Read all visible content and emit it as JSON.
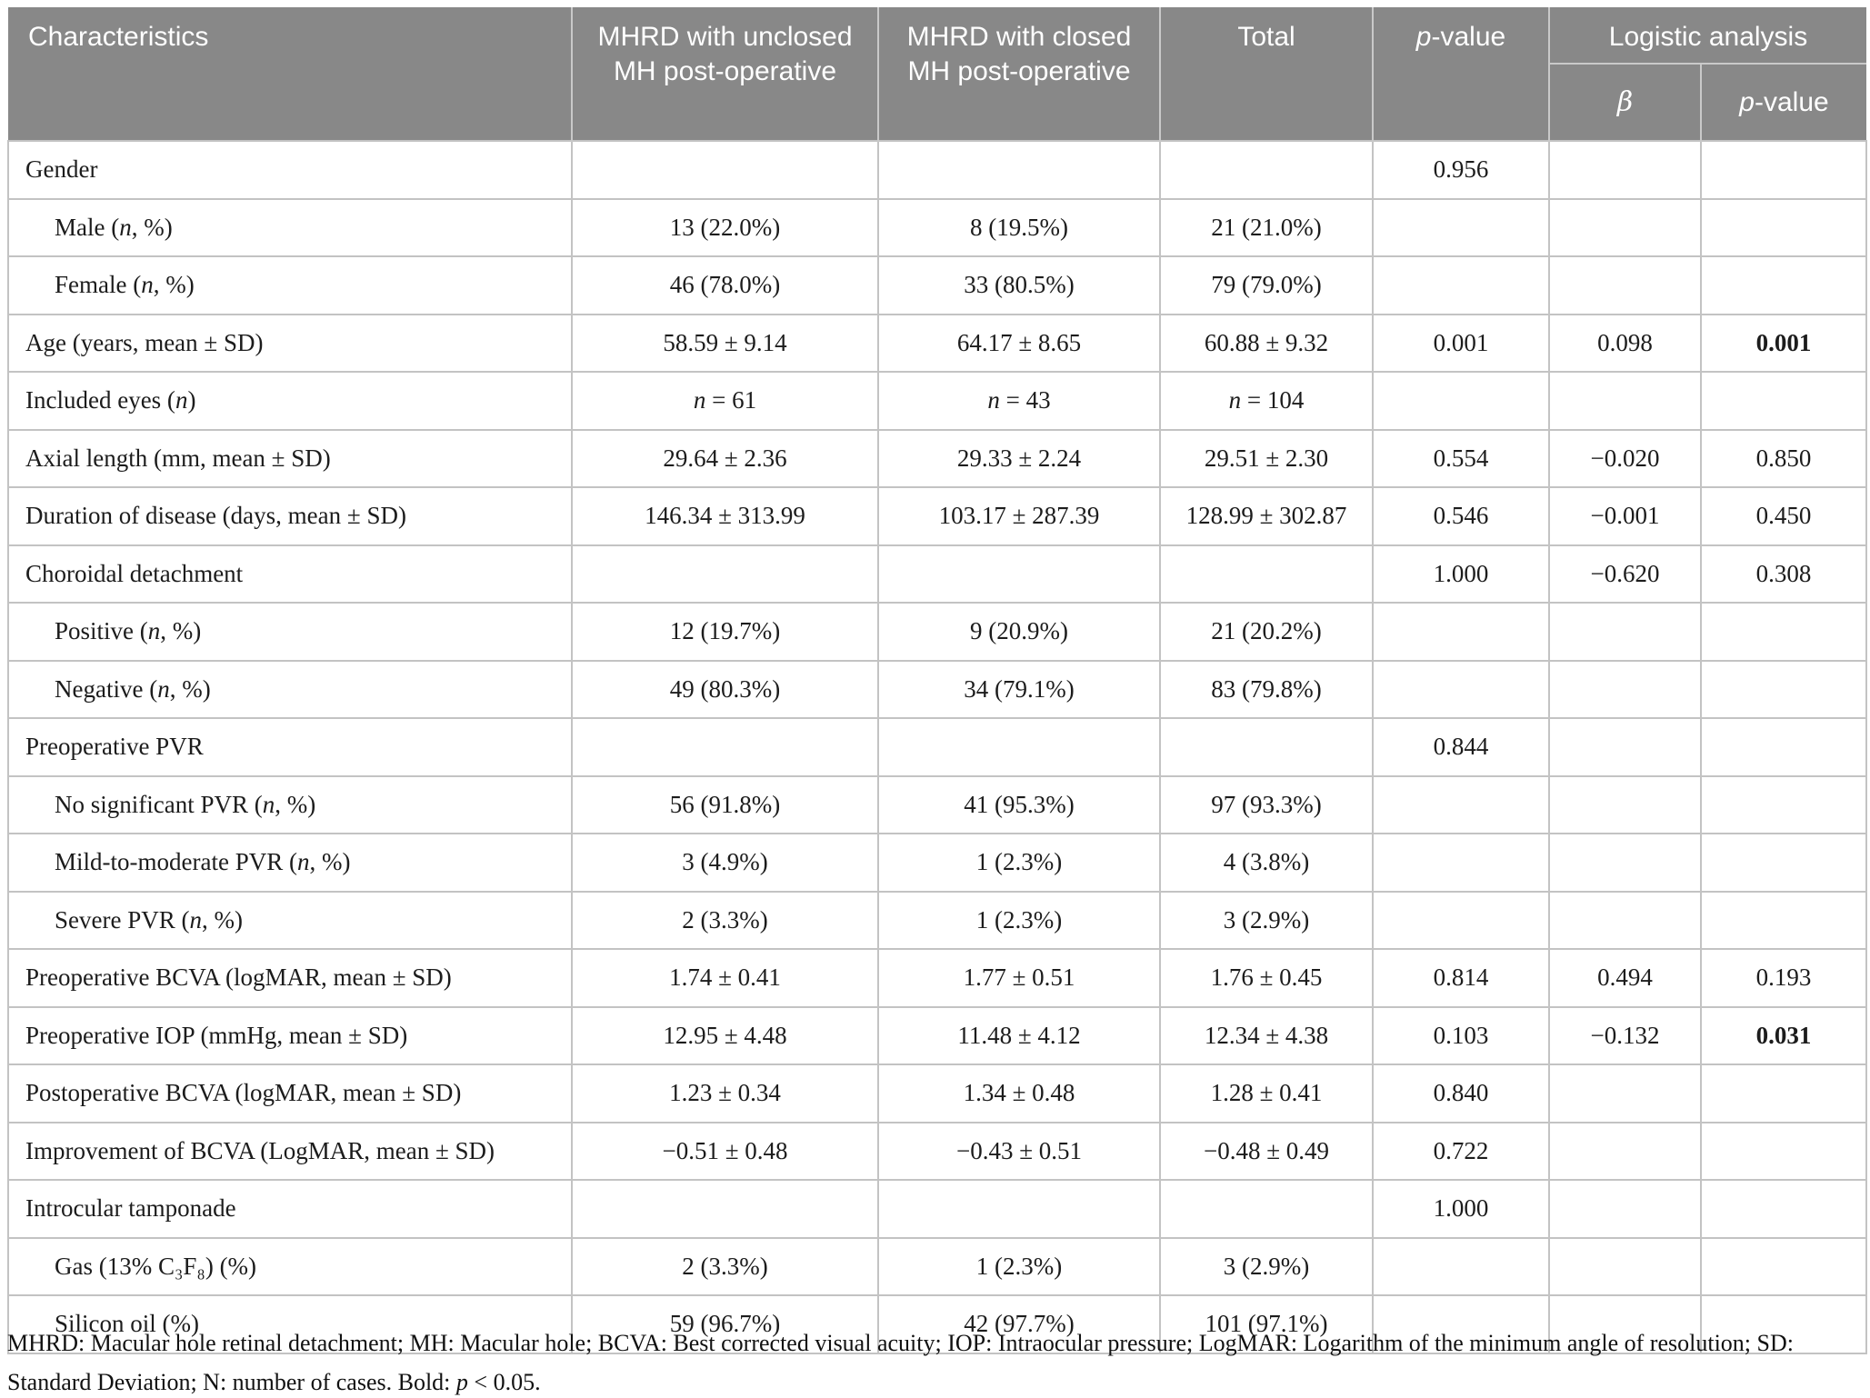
{
  "colors": {
    "header_bg": "#888888",
    "grid_line": "#c3c3c3",
    "header_text": "#ffffff",
    "body_text": "#1c1c1c"
  },
  "header": {
    "characteristics": "Characteristics",
    "group_unclosed": "MHRD with unclosed MH post-operative",
    "group_closed": "MHRD with closed MH post-operative",
    "total": "Total",
    "pvalue": [
      [
        "p",
        1
      ],
      [
        "-value",
        0
      ]
    ],
    "logistic": "Logistic analysis",
    "beta": [
      [
        "β",
        1
      ]
    ],
    "logistic_pvalue": [
      [
        "p",
        1
      ],
      [
        "-value",
        0
      ]
    ]
  },
  "table": {
    "rows": [
      {
        "label": "Gender",
        "cells": [
          "",
          "",
          "",
          "0.956",
          "",
          ""
        ]
      },
      {
        "label": [
          [
            "Male (",
            0
          ],
          [
            "n",
            1
          ],
          [
            ", %)",
            0
          ]
        ],
        "cells": [
          "13 (22.0%)",
          "8 (19.5%)",
          "21 (21.0%)",
          "",
          "",
          ""
        ]
      },
      {
        "label": [
          [
            "Female (",
            0
          ],
          [
            "n",
            1
          ],
          [
            ", %)",
            0
          ]
        ],
        "cells": [
          "46 (78.0%)",
          "33 (80.5%)",
          "79 (79.0%)",
          "",
          "",
          ""
        ]
      },
      {
        "label": "Age (years, mean ± SD)",
        "cells": [
          "58.59 ± 9.14",
          "64.17 ± 8.65",
          "60.88 ± 9.32",
          "0.001",
          "0.098",
          "0.001"
        ]
      },
      {
        "label": [
          [
            "Included eyes (",
            0
          ],
          [
            "n",
            1
          ],
          [
            ")",
            0
          ]
        ],
        "cells": [
          [
            [
              "n",
              1
            ],
            [
              " = 61",
              0
            ]
          ],
          [
            [
              "n",
              1
            ],
            [
              " = 43",
              0
            ]
          ],
          [
            [
              "n",
              1
            ],
            [
              " = 104",
              0
            ]
          ],
          "",
          "",
          ""
        ]
      },
      {
        "label": "Axial length (mm, mean ± SD)",
        "cells": [
          "29.64 ± 2.36",
          "29.33 ± 2.24",
          "29.51 ± 2.30",
          "0.554",
          "−0.020",
          "0.850"
        ]
      },
      {
        "label": "Duration of disease (days, mean ± SD)",
        "cells": [
          "146.34 ± 313.99",
          "103.17 ± 287.39",
          "128.99 ± 302.87",
          "0.546",
          "−0.001",
          "0.450"
        ]
      },
      {
        "label": "Choroidal detachment",
        "cells": [
          "",
          "",
          "",
          "1.000",
          "−0.620",
          "0.308"
        ]
      },
      {
        "label": [
          [
            "Positive (",
            0
          ],
          [
            "n",
            1
          ],
          [
            ", %)",
            0
          ]
        ],
        "cells": [
          "12 (19.7%)",
          "9 (20.9%)",
          "21 (20.2%)",
          "",
          "",
          ""
        ]
      },
      {
        "label": [
          [
            "Negative (",
            0
          ],
          [
            "n",
            1
          ],
          [
            ", %)",
            0
          ]
        ],
        "cells": [
          "49 (80.3%)",
          "34 (79.1%)",
          "83 (79.8%)",
          "",
          "",
          ""
        ]
      },
      {
        "label": "Preoperative PVR",
        "cells": [
          "",
          "",
          "",
          "0.844",
          "",
          ""
        ]
      },
      {
        "label": [
          [
            "No significant PVR (",
            0
          ],
          [
            "n",
            1
          ],
          [
            ", %)",
            0
          ]
        ],
        "cells": [
          "56 (91.8%)",
          "41 (95.3%)",
          "97 (93.3%)",
          "",
          "",
          ""
        ]
      },
      {
        "label": [
          [
            "Mild-to-moderate PVR (",
            0
          ],
          [
            "n",
            1
          ],
          [
            ", %)",
            0
          ]
        ],
        "cells": [
          "3 (4.9%)",
          "1 (2.3%)",
          "4 (3.8%)",
          "",
          "",
          ""
        ]
      },
      {
        "label": [
          [
            "Severe PVR (",
            0
          ],
          [
            "n",
            1
          ],
          [
            ", %)",
            0
          ]
        ],
        "cells": [
          "2 (3.3%)",
          "1 (2.3%)",
          "3 (2.9%)",
          "",
          "",
          ""
        ]
      },
      {
        "label": "Preoperative BCVA (logMAR, mean ± SD)",
        "cells": [
          "1.74 ± 0.41",
          "1.77 ± 0.51",
          "1.76 ± 0.45",
          "0.814",
          "0.494",
          "0.193"
        ]
      },
      {
        "label": "Preoperative IOP (mmHg, mean ± SD)",
        "cells": [
          "12.95 ± 4.48",
          "11.48 ± 4.12",
          "12.34 ± 4.38",
          "0.103",
          "−0.132",
          "0.031"
        ]
      },
      {
        "label": "Postoperative BCVA (logMAR, mean ± SD)",
        "cells": [
          "1.23 ± 0.34",
          "1.34 ± 0.48",
          "1.28 ± 0.41",
          "0.840",
          "",
          ""
        ]
      },
      {
        "label": "Improvement of BCVA (LogMAR, mean ± SD)",
        "cells": [
          "−0.51 ± 0.48",
          "−0.43 ± 0.51",
          "−0.48 ± 0.49",
          "0.722",
          "",
          ""
        ]
      },
      {
        "label": "Introcular tamponade",
        "cells": [
          "",
          "",
          "",
          "1.000",
          "",
          ""
        ]
      },
      {
        "label": "Gas (13% C₃F₈) (%)",
        "cells": [
          "2 (3.3%)",
          "1 (2.3%)",
          "3 (2.9%)",
          "",
          "",
          ""
        ]
      },
      {
        "label": "Silicon oil (%)",
        "cells": [
          "59 (96.7%)",
          "42 (97.7%)",
          "101 (97.1%)",
          "",
          "",
          ""
        ]
      }
    ],
    "bold_values": [
      "0.001",
      "0.031"
    ]
  },
  "footnote": {
    "line1": "MHRD: Macular hole retinal detachment; MH: Macular hole; BCVA: Best corrected visual acuity; IOP: Intraocular pressure; LogMAR: Logarithm of the minimum angle of resolution; SD:",
    "line2": [
      [
        "Standard Deviation; N: number of cases. Bold: ",
        0
      ],
      [
        "p",
        1
      ],
      [
        " < 0.05.",
        0
      ]
    ]
  }
}
